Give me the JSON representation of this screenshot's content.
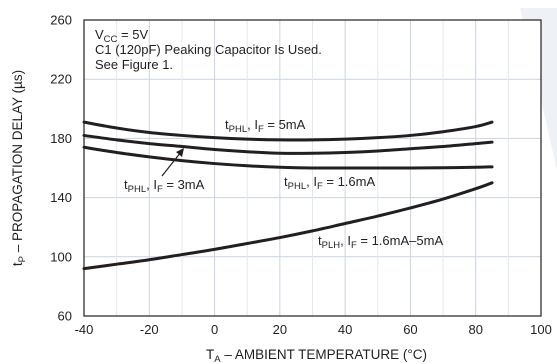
{
  "chart_data": {
    "type": "line",
    "xlabel": {
      "main": "T",
      "sub": "A",
      "rest": " – AMBIENT TEMPERATURE (°C)"
    },
    "ylabel": {
      "main": "t",
      "sub": "P",
      "rest": " – PROPAGATION DELAY (µs)"
    },
    "xlim": [
      -40,
      100
    ],
    "ylim": [
      60,
      260
    ],
    "x_ticks": [
      -40,
      -20,
      0,
      20,
      40,
      60,
      80,
      100
    ],
    "y_ticks": [
      60,
      100,
      140,
      180,
      220,
      260
    ],
    "grid": true,
    "grid_color": "#c9d3e2",
    "line_color": "#231f20",
    "background_color": "#ffffff",
    "annotations": [
      {
        "main": "V",
        "sub": "CC",
        "rest": " = 5V"
      },
      {
        "main": "C1 (120pF) Peaking Capacitor Is Used.",
        "sub": "",
        "rest": ""
      },
      {
        "main": "See Figure 1.",
        "sub": "",
        "rest": ""
      }
    ],
    "series": [
      {
        "label": [
          {
            "t": "t"
          },
          {
            "t": "PHL",
            "sub": true
          },
          {
            "t": ", I"
          },
          {
            "t": "F",
            "sub": true
          },
          {
            "t": " = 5mA"
          }
        ],
        "x": [
          -40,
          -30,
          -20,
          -10,
          0,
          10,
          20,
          30,
          40,
          50,
          60,
          70,
          80,
          85
        ],
        "y": [
          191,
          187,
          184,
          182,
          180.5,
          179.5,
          179,
          179,
          179.5,
          180.5,
          182,
          184.5,
          188,
          191
        ]
      },
      {
        "label": [
          {
            "t": "t"
          },
          {
            "t": "PHL",
            "sub": true
          },
          {
            "t": ", I"
          },
          {
            "t": "F",
            "sub": true
          },
          {
            "t": " = 3mA"
          }
        ],
        "x": [
          -40,
          -30,
          -20,
          -10,
          0,
          10,
          20,
          30,
          40,
          50,
          60,
          70,
          80,
          85
        ],
        "y": [
          182,
          179,
          176.5,
          174.5,
          172.5,
          171,
          170,
          170,
          170.5,
          171.5,
          173,
          174.5,
          176.5,
          177.5
        ]
      },
      {
        "label": [
          {
            "t": "t"
          },
          {
            "t": "PHL",
            "sub": true
          },
          {
            "t": ", I"
          },
          {
            "t": "F",
            "sub": true
          },
          {
            "t": " = 1.6mA"
          }
        ],
        "x": [
          -40,
          -30,
          -20,
          -10,
          0,
          10,
          20,
          30,
          40,
          50,
          60,
          70,
          80,
          85
        ],
        "y": [
          174,
          170.5,
          167.5,
          165,
          163,
          161.5,
          160.5,
          160,
          160,
          160,
          160,
          160.2,
          160.5,
          160.8
        ]
      },
      {
        "label": [
          {
            "t": "t"
          },
          {
            "t": "PLH",
            "sub": true
          },
          {
            "t": ", I"
          },
          {
            "t": "F",
            "sub": true
          },
          {
            "t": " = 1.6mA–5mA"
          }
        ],
        "x": [
          -40,
          -30,
          -20,
          -10,
          0,
          10,
          20,
          30,
          40,
          50,
          60,
          70,
          80,
          85
        ],
        "y": [
          92,
          95,
          98,
          101.5,
          105,
          109,
          113,
          117.5,
          122.5,
          127.5,
          133,
          139,
          146,
          150
        ]
      }
    ]
  }
}
